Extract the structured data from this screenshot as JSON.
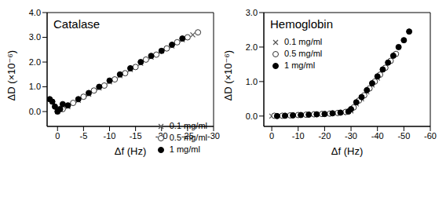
{
  "chart_data": [
    {
      "type": "scatter",
      "title": "Catalase",
      "x_label": "Δf (Hz)",
      "y_label": "ΔD (×10⁻⁶)",
      "xlim": [
        2,
        -30
      ],
      "xticks": [
        0,
        -5,
        -10,
        -15,
        -20,
        -25,
        -30
      ],
      "ylim": [
        -0.6,
        4
      ],
      "yticks": [
        {
          "value": 0,
          "label": "0.0"
        },
        {
          "value": 1,
          "label": "1.0"
        },
        {
          "value": 2,
          "label": "2.0"
        },
        {
          "value": 3,
          "label": "3.0"
        },
        {
          "value": 4,
          "label": "4.0"
        }
      ],
      "grid": false,
      "legend": "lower right",
      "series": [
        {
          "name": "0.1 mg/ml",
          "color": "#555555",
          "marker": "x",
          "x": [
            0,
            -2,
            -4,
            -6,
            -8,
            -10,
            -12,
            -14,
            -16,
            -18,
            -20,
            -22,
            -24,
            -26
          ],
          "values": [
            0,
            0.2,
            0.45,
            0.7,
            0.95,
            1.2,
            1.45,
            1.7,
            1.95,
            2.2,
            2.45,
            2.65,
            2.9,
            3.1
          ]
        },
        {
          "name": "0.5 mg/ml",
          "color": "#333333",
          "marker": "circle_open",
          "x": [
            -1,
            -3,
            -5,
            -7,
            -9,
            -11,
            -13,
            -15,
            -17,
            -19,
            -21,
            -23,
            -25,
            -27
          ],
          "values": [
            0.1,
            0.35,
            0.6,
            0.85,
            1.05,
            1.3,
            1.55,
            1.8,
            2.1,
            2.3,
            2.55,
            2.8,
            3.0,
            3.2
          ]
        },
        {
          "name": "1 mg/ml",
          "color": "#000000",
          "marker": "circle_filled",
          "x": [
            0,
            1,
            0.5,
            -1,
            1.5,
            -0.5,
            -2,
            -4,
            -6,
            -8,
            -10,
            -12,
            -14,
            -16,
            -18,
            -20,
            -22,
            -24
          ],
          "values": [
            0,
            0.4,
            0.2,
            0.3,
            0.5,
            0.1,
            0.25,
            0.5,
            0.75,
            1.0,
            1.25,
            1.5,
            1.75,
            2.0,
            2.25,
            2.45,
            2.7,
            2.95
          ]
        }
      ]
    },
    {
      "type": "scatter",
      "title": "Hemoglobin",
      "x_label": "Δf (Hz)",
      "y_label": "ΔD (×10⁻⁶)",
      "xlim": [
        3,
        -60
      ],
      "xticks": [
        0,
        -10,
        -20,
        -30,
        -40,
        -50,
        -60
      ],
      "ylim": [
        -0.3,
        3
      ],
      "yticks": [
        {
          "value": 0,
          "label": "0.0"
        },
        {
          "value": 1,
          "label": "1.0"
        },
        {
          "value": 2,
          "label": "2.0"
        },
        {
          "value": 3,
          "label": "3.0"
        }
      ],
      "grid": false,
      "legend": "upper left",
      "series": [
        {
          "name": "0.1 mg/ml",
          "color": "#555555",
          "marker": "x",
          "x": [
            0,
            -3,
            -6,
            -9,
            -12,
            -15,
            -18,
            -21,
            -24,
            -27,
            -30,
            -32,
            -34,
            -36,
            -38,
            -40
          ],
          "values": [
            0,
            0,
            0.02,
            0.03,
            0.03,
            0.05,
            0.06,
            0.07,
            0.08,
            0.1,
            0.15,
            0.35,
            0.5,
            0.7,
            0.9,
            1.1
          ]
        },
        {
          "name": "0.5 mg/ml",
          "color": "#333333",
          "marker": "circle_open",
          "x": [
            -1,
            -4,
            -7,
            -10,
            -13,
            -16,
            -19,
            -22,
            -25,
            -28,
            -31,
            -33,
            -35,
            -37,
            -39,
            -41,
            -43,
            -45,
            -47
          ],
          "values": [
            0.01,
            0.01,
            0.02,
            0.03,
            0.04,
            0.05,
            0.06,
            0.07,
            0.09,
            0.12,
            0.25,
            0.45,
            0.6,
            0.8,
            1.0,
            1.2,
            1.4,
            1.6,
            1.8
          ]
        },
        {
          "name": "1 mg/ml",
          "color": "#000000",
          "marker": "circle_filled",
          "x": [
            -2,
            -5,
            -8,
            -11,
            -14,
            -17,
            -20,
            -23,
            -26,
            -29,
            -30,
            -32,
            -34,
            -36,
            -38,
            -40,
            -42,
            -44,
            -46,
            -48,
            -50,
            -52
          ],
          "values": [
            0,
            0.01,
            0.02,
            0.03,
            0.04,
            0.05,
            0.06,
            0.08,
            0.1,
            0.13,
            0.2,
            0.4,
            0.55,
            0.75,
            0.95,
            1.15,
            1.35,
            1.55,
            1.75,
            2.0,
            2.2,
            2.45
          ]
        }
      ]
    }
  ]
}
